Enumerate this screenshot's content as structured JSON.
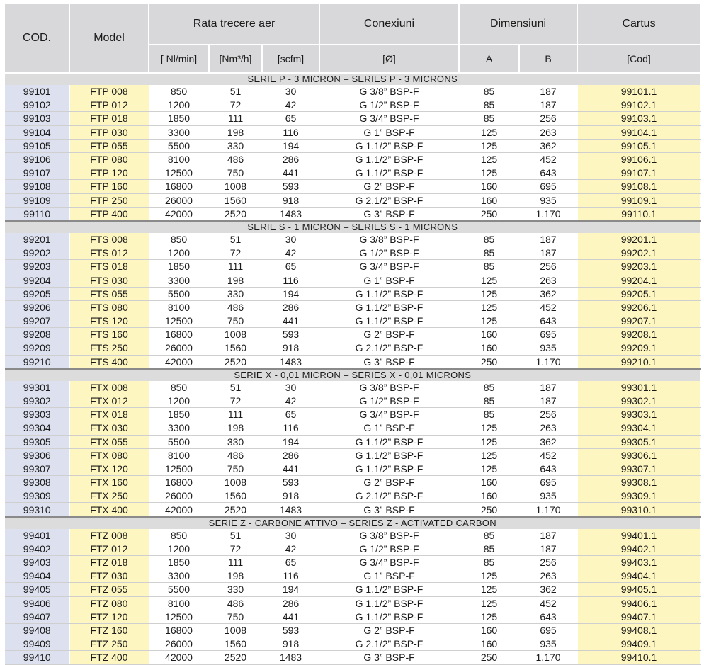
{
  "header": {
    "cod": "COD.",
    "model": "Model",
    "flow": "Rata trecere aer",
    "connections": "Conexiuni",
    "dimensions": "Dimensiuni",
    "cartridge": "Cartus",
    "unit_nl": "[ Nl/min]",
    "unit_nm": "[Nm³/h]",
    "unit_scfm": "[scfm]",
    "unit_diam": "[Ø]",
    "dim_a": "A",
    "dim_b": "B",
    "unit_cod": "[Cod]"
  },
  "sections": [
    {
      "title": "SERIE P - 3 MICRON – SERIES P - 3 MICRONS",
      "rows": [
        [
          "99101",
          "FTP 008",
          "850",
          "51",
          "30",
          "G 3/8” BSP-F",
          "85",
          "187",
          "99101.1"
        ],
        [
          "99102",
          "FTP 012",
          "1200",
          "72",
          "42",
          "G 1/2” BSP-F",
          "85",
          "187",
          "99102.1"
        ],
        [
          "99103",
          "FTP 018",
          "1850",
          "111",
          "65",
          "G 3/4” BSP-F",
          "85",
          "256",
          "99103.1"
        ],
        [
          "99104",
          "FTP 030",
          "3300",
          "198",
          "116",
          "G 1” BSP-F",
          "125",
          "263",
          "99104.1"
        ],
        [
          "99105",
          "FTP 055",
          "5500",
          "330",
          "194",
          "G 1.1/2” BSP-F",
          "125",
          "362",
          "99105.1"
        ],
        [
          "99106",
          "FTP 080",
          "8100",
          "486",
          "286",
          "G 1.1/2” BSP-F",
          "125",
          "452",
          "99106.1"
        ],
        [
          "99107",
          "FTP 120",
          "12500",
          "750",
          "441",
          "G 1.1/2” BSP-F",
          "125",
          "643",
          "99107.1"
        ],
        [
          "99108",
          "FTP 160",
          "16800",
          "1008",
          "593",
          "G 2” BSP-F",
          "160",
          "695",
          "99108.1"
        ],
        [
          "99109",
          "FTP 250",
          "26000",
          "1560",
          "918",
          "G 2.1/2” BSP-F",
          "160",
          "935",
          "99109.1"
        ],
        [
          "99110",
          "FTP 400",
          "42000",
          "2520",
          "1483",
          "G 3” BSP-F",
          "250",
          "1.170",
          "99110.1"
        ]
      ]
    },
    {
      "title": "SERIE S - 1 MICRON – SERIES S - 1 MICRONS",
      "rows": [
        [
          "99201",
          "FTS 008",
          "850",
          "51",
          "30",
          "G 3/8” BSP-F",
          "85",
          "187",
          "99201.1"
        ],
        [
          "99202",
          "FTS 012",
          "1200",
          "72",
          "42",
          "G 1/2” BSP-F",
          "85",
          "187",
          "99202.1"
        ],
        [
          "99203",
          "FTS 018",
          "1850",
          "111",
          "65",
          "G 3/4” BSP-F",
          "85",
          "256",
          "99203.1"
        ],
        [
          "99204",
          "FTS 030",
          "3300",
          "198",
          "116",
          "G 1” BSP-F",
          "125",
          "263",
          "99204.1"
        ],
        [
          "99205",
          "FTS 055",
          "5500",
          "330",
          "194",
          "G 1.1/2” BSP-F",
          "125",
          "362",
          "99205.1"
        ],
        [
          "99206",
          "FTS 080",
          "8100",
          "486",
          "286",
          "G 1.1/2” BSP-F",
          "125",
          "452",
          "99206.1"
        ],
        [
          "99207",
          "FTS 120",
          "12500",
          "750",
          "441",
          "G 1.1/2” BSP-F",
          "125",
          "643",
          "99207.1"
        ],
        [
          "99208",
          "FTS 160",
          "16800",
          "1008",
          "593",
          "G 2” BSP-F",
          "160",
          "695",
          "99208.1"
        ],
        [
          "99209",
          "FTS 250",
          "26000",
          "1560",
          "918",
          "G 2.1/2” BSP-F",
          "160",
          "935",
          "99209.1"
        ],
        [
          "99210",
          "FTS 400",
          "42000",
          "2520",
          "1483",
          "G 3” BSP-F",
          "250",
          "1.170",
          "99210.1"
        ]
      ]
    },
    {
      "title": "SERIE X - 0,01 MICRON – SERIES X - 0,01 MICRONS",
      "rows": [
        [
          "99301",
          "FTX 008",
          "850",
          "51",
          "30",
          "G 3/8” BSP-F",
          "85",
          "187",
          "99301.1"
        ],
        [
          "99302",
          "FTX 012",
          "1200",
          "72",
          "42",
          "G 1/2” BSP-F",
          "85",
          "187",
          "99302.1"
        ],
        [
          "99303",
          "FTX 018",
          "1850",
          "111",
          "65",
          "G 3/4” BSP-F",
          "85",
          "256",
          "99303.1"
        ],
        [
          "99304",
          "FTX 030",
          "3300",
          "198",
          "116",
          "G 1” BSP-F",
          "125",
          "263",
          "99304.1"
        ],
        [
          "99305",
          "FTX 055",
          "5500",
          "330",
          "194",
          "G 1.1/2” BSP-F",
          "125",
          "362",
          "99305.1"
        ],
        [
          "99306",
          "FTX 080",
          "8100",
          "486",
          "286",
          "G 1.1/2” BSP-F",
          "125",
          "452",
          "99306.1"
        ],
        [
          "99307",
          "FTX 120",
          "12500",
          "750",
          "441",
          "G 1.1/2” BSP-F",
          "125",
          "643",
          "99307.1"
        ],
        [
          "99308",
          "FTX 160",
          "16800",
          "1008",
          "593",
          "G 2” BSP-F",
          "160",
          "695",
          "99308.1"
        ],
        [
          "99309",
          "FTX 250",
          "26000",
          "1560",
          "918",
          "G 2.1/2” BSP-F",
          "160",
          "935",
          "99309.1"
        ],
        [
          "99310",
          "FTX 400",
          "42000",
          "2520",
          "1483",
          "G 3” BSP-F",
          "250",
          "1.170",
          "99310.1"
        ]
      ]
    },
    {
      "title": "SERIE Z - CARBONE ATTIVO – SERIES Z - ACTIVATED CARBON",
      "rows": [
        [
          "99401",
          "FTZ 008",
          "850",
          "51",
          "30",
          "G 3/8” BSP-F",
          "85",
          "187",
          "99401.1"
        ],
        [
          "99402",
          "FTZ 012",
          "1200",
          "72",
          "42",
          "G 1/2” BSP-F",
          "85",
          "187",
          "99402.1"
        ],
        [
          "99403",
          "FTZ 018",
          "1850",
          "111",
          "65",
          "G 3/4” BSP-F",
          "85",
          "256",
          "99403.1"
        ],
        [
          "99404",
          "FTZ 030",
          "3300",
          "198",
          "116",
          "G 1” BSP-F",
          "125",
          "263",
          "99404.1"
        ],
        [
          "99405",
          "FTZ 055",
          "5500",
          "330",
          "194",
          "G 1.1/2” BSP-F",
          "125",
          "362",
          "99405.1"
        ],
        [
          "99406",
          "FTZ 080",
          "8100",
          "486",
          "286",
          "G 1.1/2” BSP-F",
          "125",
          "452",
          "99406.1"
        ],
        [
          "99407",
          "FTZ 120",
          "12500",
          "750",
          "441",
          "G 1.1/2” BSP-F",
          "125",
          "643",
          "99407.1"
        ],
        [
          "99408",
          "FTZ 160",
          "16800",
          "1008",
          "593",
          "G 2” BSP-F",
          "160",
          "695",
          "99408.1"
        ],
        [
          "99409",
          "FTZ 250",
          "26000",
          "1560",
          "918",
          "G 2.1/2” BSP-F",
          "160",
          "935",
          "99409.1"
        ],
        [
          "99410",
          "FTZ 400",
          "42000",
          "2520",
          "1483",
          "G 3” BSP-F",
          "250",
          "1.170",
          "99410.1"
        ]
      ]
    }
  ]
}
